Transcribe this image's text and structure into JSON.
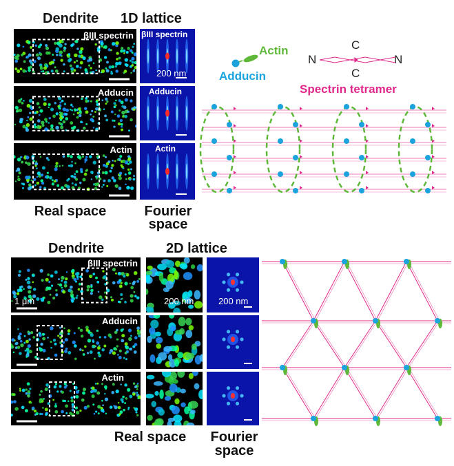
{
  "top": {
    "header_dendrite": "Dendrite",
    "header_lattice": "1D lattice",
    "panels": [
      {
        "label": "βIII spectrin",
        "fourier_label": "βIII spectrin",
        "fourier_scale": "200 nm"
      },
      {
        "label": "Adducin",
        "fourier_label": "Adducin"
      },
      {
        "label": "Actin",
        "fourier_label": "Actin"
      }
    ],
    "footer_real": "Real space",
    "footer_fourier_1": "Fourier",
    "footer_fourier_2": "space"
  },
  "legend": {
    "actin": "Actin",
    "adducin": "Adducin",
    "spectrin": "Spectrin tetramer",
    "n_left": "N",
    "n_right": "N",
    "c_top": "C",
    "c_bottom": "C",
    "colors": {
      "actin": "#5fb83a",
      "adducin": "#1aa3dd",
      "spectrin": "#e0288a"
    }
  },
  "bottom": {
    "header_dendrite": "Dendrite",
    "header_lattice": "2D lattice",
    "panels": [
      {
        "label": "βIII spectrin",
        "scale": "1 μm",
        "zoom_scale": "200 nm",
        "fourier_scale": "200 nm"
      },
      {
        "label": "Adducin"
      },
      {
        "label": "Actin"
      }
    ],
    "footer_real": "Real space",
    "footer_fourier_1": "Fourier",
    "footer_fourier_2": "space"
  }
}
